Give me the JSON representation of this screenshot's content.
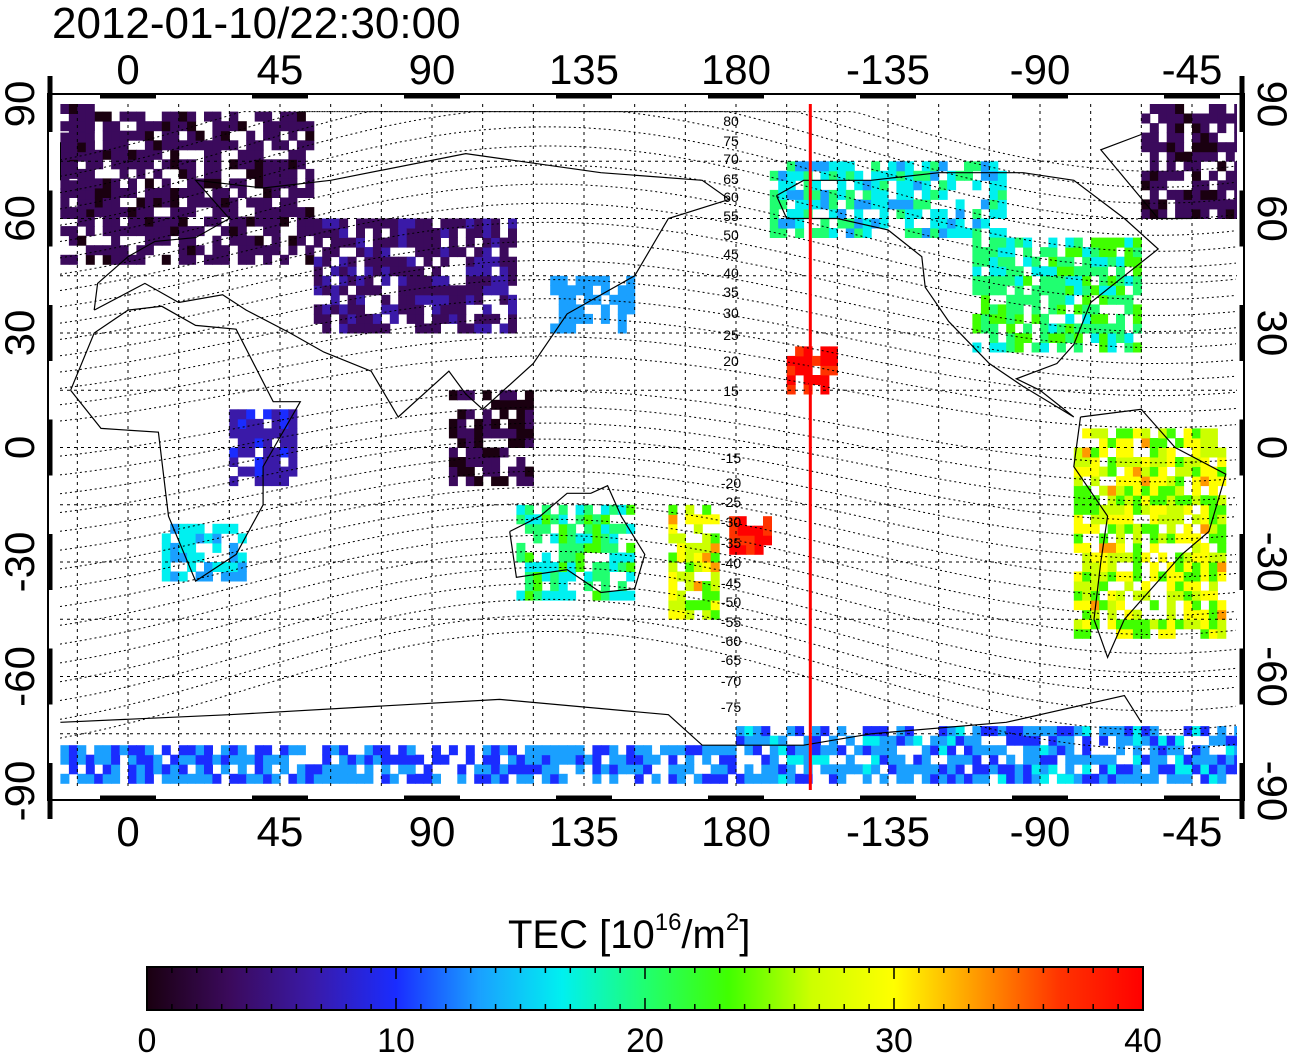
{
  "title": "2012-01-10/22:30:00",
  "map": {
    "lon_top_labels": [
      "0",
      "45",
      "90",
      "135",
      "180",
      "-135",
      "-90",
      "-45"
    ],
    "lon_bottom_labels": [
      "0",
      "45",
      "90",
      "135",
      "180",
      "-135",
      "-90",
      "-45"
    ],
    "lat_left_labels": [
      "90",
      "60",
      "30",
      "0",
      "-30",
      "-60",
      "-90"
    ],
    "lat_right_labels": [
      "90",
      "60",
      "30",
      "0",
      "-30",
      "-60",
      "-90"
    ],
    "magnetic_latitude_labels": [
      "80",
      "75",
      "70",
      "65",
      "60",
      "55",
      "50",
      "45",
      "40",
      "35",
      "30",
      "25",
      "20",
      "15",
      "-15",
      "-20",
      "-25",
      "-30",
      "-35",
      "-40",
      "-45",
      "-50",
      "-55",
      "-60",
      "-65",
      "-70",
      "-75"
    ],
    "meridian_marker_lon": -158,
    "meridian_marker_color": "#ff0000"
  },
  "colorbar": {
    "title_main": "TEC  [10",
    "title_sup1": "16",
    "title_mid": "/m",
    "title_sup2": "2",
    "title_end": "]",
    "tick_labels": [
      "0",
      "10",
      "20",
      "30",
      "40"
    ],
    "min": 0,
    "max": 40,
    "colors": [
      "#1a0010",
      "#3b0a5c",
      "#3a1aa8",
      "#1a2cff",
      "#1aa0ff",
      "#00f0f0",
      "#20ff70",
      "#40ff00",
      "#ccff00",
      "#ffff00",
      "#ff9900",
      "#ff3300",
      "#ff0000"
    ]
  }
}
